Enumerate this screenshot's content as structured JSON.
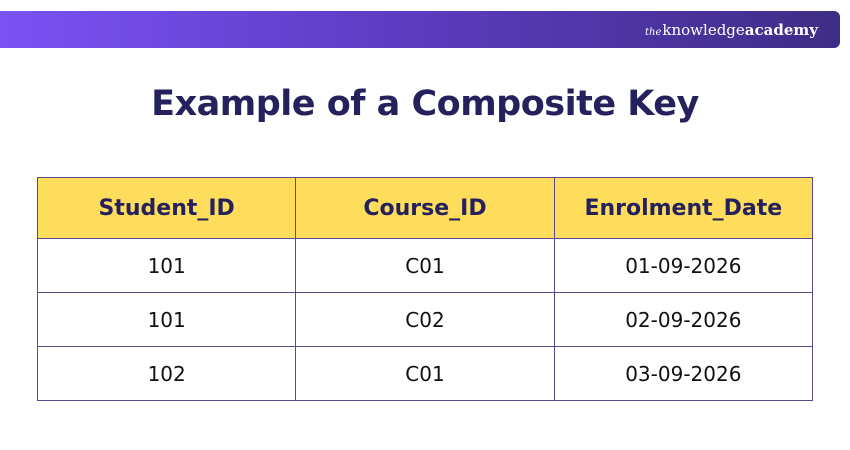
{
  "brand": {
    "prefix": "the",
    "name_regular": "knowledge",
    "name_bold": "academy"
  },
  "title": "Example of a Composite Key",
  "table": {
    "headers": [
      "Student_ID",
      "Course_ID",
      "Enrolment_Date"
    ],
    "rows": [
      [
        "101",
        "C01",
        "01-09-2026"
      ],
      [
        "101",
        "C02",
        "02-09-2026"
      ],
      [
        "102",
        "C01",
        "03-09-2026"
      ]
    ]
  },
  "colors": {
    "banner_start": "#7b52f5",
    "banner_end": "#3e2d86",
    "title": "#25215c",
    "header_fill": "#ffdd5c",
    "table_border": "#5b4a8f"
  }
}
